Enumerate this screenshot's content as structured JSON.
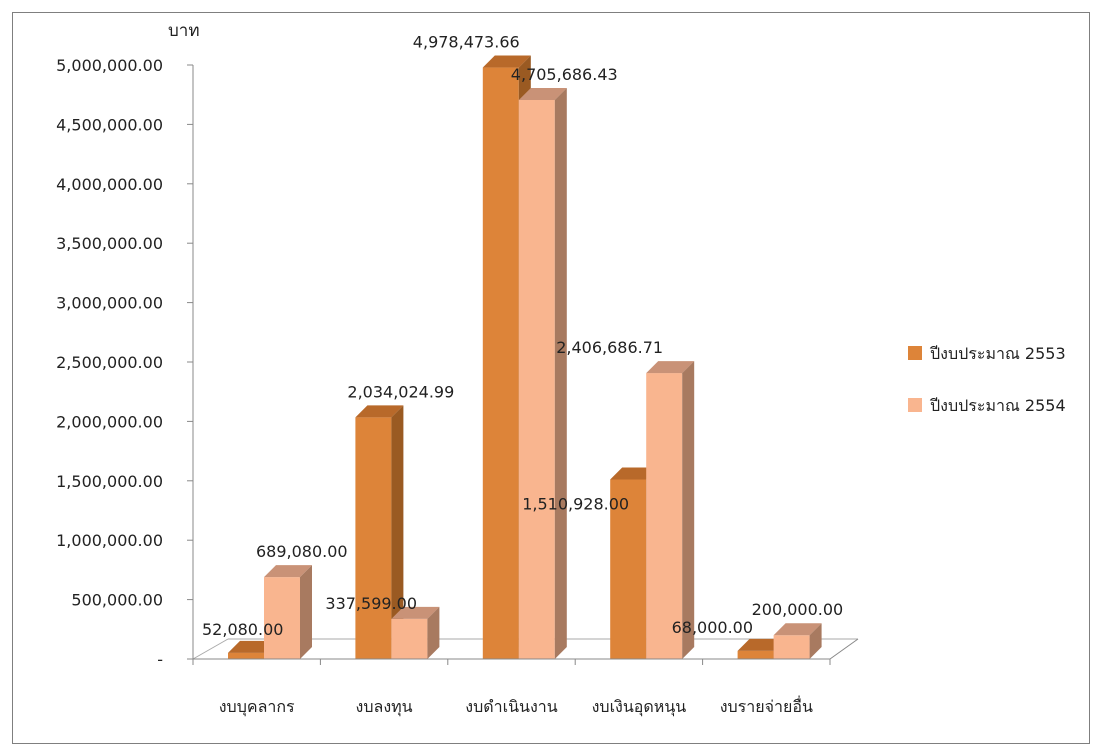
{
  "chart_data": {
    "type": "bar",
    "title": "",
    "xlabel": "",
    "ylabel": "บาท",
    "ylim": [
      0,
      5000000
    ],
    "y_ticks": [
      0,
      500000,
      1000000,
      1500000,
      2000000,
      2500000,
      3000000,
      3500000,
      4000000,
      4500000,
      5000000
    ],
    "y_tick_labels": [
      "-",
      "500,000.00",
      "1,000,000.00",
      "1,500,000.00",
      "2,000,000.00",
      "2,500,000.00",
      "3,000,000.00",
      "3,500,000.00",
      "4,000,000.00",
      "4,500,000.00",
      "5,000,000.00"
    ],
    "categories": [
      "งบบุคลากร",
      "งบลงทุน",
      "งบดำเนินงาน",
      "งบเงินอุดหนุน",
      "งบรายจ่ายอื่น"
    ],
    "series": [
      {
        "name": "ปีงบประมาณ 2553",
        "values": [
          52080.0,
          2034024.99,
          4978473.66,
          1510928.0,
          68000.0
        ],
        "labels": [
          "52,080.00",
          "2,034,024.99",
          "4,978,473.66",
          "1,510,928.00",
          "68,000.00"
        ],
        "color": "#DD8439",
        "side_color": "#9A5A22",
        "top_color": "#B8692A"
      },
      {
        "name": "ปีงบประมาณ 2554",
        "values": [
          689080.0,
          337599.0,
          4705686.43,
          2406686.71,
          200000.0
        ],
        "labels": [
          "689,080.00",
          "337,599.00",
          "4,705,686.43",
          "2,406,686.71",
          "200,000.00"
        ],
        "color": "#F9B58F",
        "side_color": "#A87A60",
        "top_color": "#C99277"
      }
    ],
    "legend_position": "right",
    "grid": false,
    "three_d": true
  }
}
